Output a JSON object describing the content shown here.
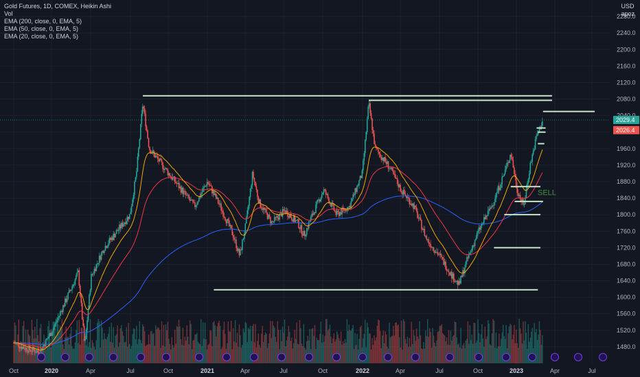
{
  "legend": {
    "title": "Gold Futures, 1D, COMEX, Heikin Ashi",
    "lines": [
      "Vol",
      "EMA (200, close, 0, EMA, 5)",
      "EMA (50, close, 0, EMA, 5)",
      "EMA (20, close, 0, EMA, 5)"
    ]
  },
  "axis": {
    "currency": "USD",
    "user": "apoz"
  },
  "price_tags": {
    "last": "2029.4",
    "prev": "2026.4",
    "last_color": "#26a69a",
    "prev_color": "#ef5350"
  },
  "annotation": {
    "text": "SELL"
  },
  "colors": {
    "up": "#26a69a",
    "down": "#ef5350",
    "ema200": "#2962ff",
    "ema50": "#f23645",
    "ema20": "#f7a600",
    "level": "#c8e6c9",
    "bg": "#131722"
  },
  "chart_data": {
    "type": "candlestick",
    "title": "Gold Futures, 1D, COMEX, Heikin Ashi",
    "x_ticks": [
      "Oct",
      "2020",
      "Apr",
      "Jul",
      "Oct",
      "2021",
      "Apr",
      "Jul",
      "Oct",
      "2022",
      "Apr",
      "Jul",
      "Oct",
      "2023",
      "Apr",
      "Jul"
    ],
    "y_ticks": [
      1480,
      1520,
      1560,
      1600,
      1640,
      1680,
      1720,
      1760,
      1800,
      1840,
      1880,
      1920,
      1960,
      2000,
      2040,
      2080,
      2120,
      2160,
      2200,
      2240,
      2280
    ],
    "y_tick_labels": [
      "1480.0",
      "1520.0",
      "1560.0",
      "1600.0",
      "1640.0",
      "1680.0",
      "1720.0",
      "1760.0",
      "1800.0",
      "1840.0",
      "1880.0",
      "1920.0",
      "1960.0",
      "2000.0",
      "2040.0",
      "2080.0",
      "2120.0",
      "2160.0",
      "2200.0",
      "2240.0",
      "2280.0"
    ],
    "ylim": [
      1440,
      2320
    ],
    "price_path": [
      {
        "t": 0.0,
        "p": 1490
      },
      {
        "t": 1.0,
        "p": 1475
      },
      {
        "t": 2.0,
        "p": 1468
      },
      {
        "t": 3.0,
        "p": 1520
      },
      {
        "t": 4.0,
        "p": 1590
      },
      {
        "t": 5.0,
        "p": 1660
      },
      {
        "t": 5.5,
        "p": 1480
      },
      {
        "t": 6.0,
        "p": 1650
      },
      {
        "t": 7.0,
        "p": 1720
      },
      {
        "t": 8.0,
        "p": 1760
      },
      {
        "t": 9.0,
        "p": 1800
      },
      {
        "t": 9.5,
        "p": 1900
      },
      {
        "t": 10.0,
        "p": 2070
      },
      {
        "t": 10.5,
        "p": 1960
      },
      {
        "t": 11.0,
        "p": 1940
      },
      {
        "t": 12.0,
        "p": 1900
      },
      {
        "t": 13.0,
        "p": 1860
      },
      {
        "t": 14.0,
        "p": 1820
      },
      {
        "t": 15.0,
        "p": 1880
      },
      {
        "t": 16.0,
        "p": 1820
      },
      {
        "t": 17.0,
        "p": 1750
      },
      {
        "t": 17.5,
        "p": 1700
      },
      {
        "t": 18.0,
        "p": 1780
      },
      {
        "t": 18.5,
        "p": 1900
      },
      {
        "t": 19.0,
        "p": 1830
      },
      {
        "t": 20.0,
        "p": 1780
      },
      {
        "t": 21.0,
        "p": 1810
      },
      {
        "t": 22.0,
        "p": 1780
      },
      {
        "t": 22.5,
        "p": 1750
      },
      {
        "t": 23.0,
        "p": 1790
      },
      {
        "t": 24.0,
        "p": 1860
      },
      {
        "t": 25.0,
        "p": 1800
      },
      {
        "t": 26.0,
        "p": 1820
      },
      {
        "t": 27.0,
        "p": 1900
      },
      {
        "t": 27.5,
        "p": 2070
      },
      {
        "t": 28.0,
        "p": 1960
      },
      {
        "t": 29.0,
        "p": 1920
      },
      {
        "t": 30.0,
        "p": 1860
      },
      {
        "t": 31.0,
        "p": 1820
      },
      {
        "t": 32.0,
        "p": 1740
      },
      {
        "t": 33.0,
        "p": 1700
      },
      {
        "t": 34.0,
        "p": 1650
      },
      {
        "t": 34.5,
        "p": 1630
      },
      {
        "t": 35.0,
        "p": 1680
      },
      {
        "t": 36.0,
        "p": 1760
      },
      {
        "t": 37.0,
        "p": 1820
      },
      {
        "t": 38.0,
        "p": 1900
      },
      {
        "t": 38.5,
        "p": 1950
      },
      {
        "t": 39.0,
        "p": 1860
      },
      {
        "t": 39.5,
        "p": 1820
      },
      {
        "t": 40.0,
        "p": 1920
      },
      {
        "t": 40.5,
        "p": 1990
      },
      {
        "t": 41.0,
        "p": 2030
      }
    ],
    "horizontal_levels": [
      {
        "price": 2088,
        "from_t": 10.0,
        "to_t": 41.7
      },
      {
        "price": 2077,
        "from_t": 27.5,
        "to_t": 41.7
      },
      {
        "price": 2050,
        "from_t": 41.0,
        "to_t": 45.0
      },
      {
        "price": 2010,
        "from_t": 40.5,
        "to_t": 41.2
      },
      {
        "price": 2000,
        "from_t": 40.6,
        "to_t": 41.2
      },
      {
        "price": 1972,
        "from_t": 40.6,
        "to_t": 41.1
      },
      {
        "price": 1868,
        "from_t": 38.5,
        "to_t": 40.8
      },
      {
        "price": 1832,
        "from_t": 38.8,
        "to_t": 41.0
      },
      {
        "price": 1800,
        "from_t": 38.0,
        "to_t": 40.8
      },
      {
        "price": 1720,
        "from_t": 37.2,
        "to_t": 40.8
      },
      {
        "price": 1618,
        "from_t": 15.5,
        "to_t": 40.6
      }
    ],
    "last_price": 2029.4,
    "prev_price": 2026.4,
    "annotations": [
      "SELL"
    ],
    "series": [
      {
        "name": "Vol"
      },
      {
        "name": "EMA (200, close, 0, EMA, 5)"
      },
      {
        "name": "EMA (50, close, 0, EMA, 5)"
      },
      {
        "name": "EMA (20, close, 0, EMA, 5)"
      }
    ]
  }
}
